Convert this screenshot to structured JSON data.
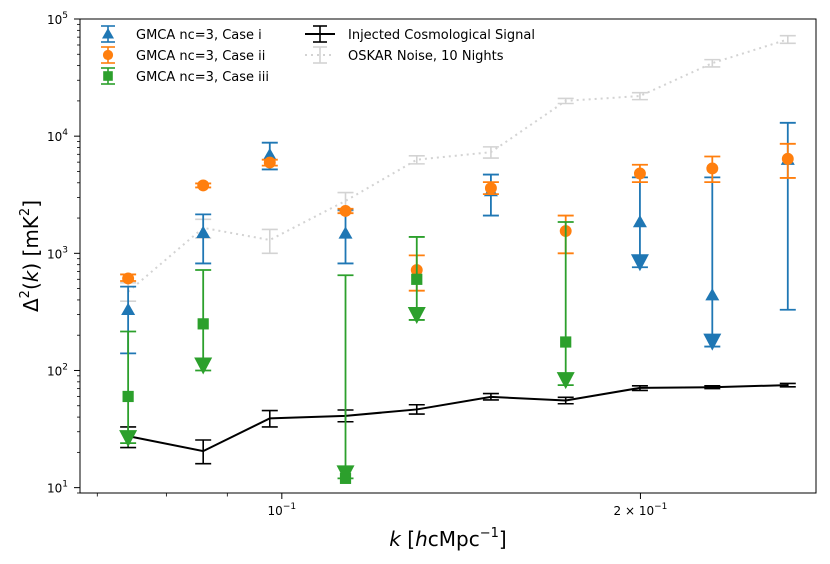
{
  "chart_data": {
    "type": "errorbar",
    "xscale": "log",
    "yscale": "log",
    "xlim": [
      0.0677,
      0.2808
    ],
    "ylim": [
      9,
      100000
    ],
    "x_tick_labels": [
      "10",
      "2 × 10"
    ],
    "x_tick_exponents": [
      "−1",
      "−1"
    ],
    "y_tick_labels": [
      "10",
      "10",
      "10",
      "10",
      "10"
    ],
    "y_tick_exponents": [
      "1",
      "2",
      "3",
      "4",
      "5"
    ],
    "xlabel": {
      "prefix": "k [h",
      "mid": "cMpc",
      "exp": "−1",
      "suffix": "]"
    },
    "ylabel": {
      "prefix": "Δ",
      "exp1": "2",
      "mid": "(k) [mK",
      "exp2": "2",
      "suffix": "]"
    },
    "series": [
      {
        "name": "GMCA nc=3, Case i",
        "color": "#1f77b4",
        "marker": "triangle",
        "points": [
          {
            "x": 0.0743,
            "y": 330,
            "lo": 140,
            "hi": 520
          },
          {
            "x": 0.0859,
            "y": 1500,
            "lo": 820,
            "hi": 2150
          },
          {
            "x": 0.0977,
            "y": 6900,
            "lo": 5200,
            "hi": 8800
          },
          {
            "x": 0.1131,
            "y": 1480,
            "lo": 820,
            "hi": 2350
          },
          {
            "x": 0.1498,
            "y": 3400,
            "lo": 2100,
            "hi": 4700
          },
          {
            "x": 0.1998,
            "y": 1850,
            "lo": 760,
            "hi": 4450,
            "upper_limit": true
          },
          {
            "x": 0.2298,
            "y": 440,
            "lo": 160,
            "hi": 4450,
            "upper_limit": true
          },
          {
            "x": 0.2659,
            "y": 6300,
            "lo": 330,
            "hi": 13000
          }
        ]
      },
      {
        "name": "GMCA nc=3, Case ii",
        "color": "#ff7f0e",
        "marker": "circle",
        "points": [
          {
            "x": 0.0743,
            "y": 610,
            "lo": 580,
            "hi": 660
          },
          {
            "x": 0.0859,
            "y": 3800,
            "lo": 3650,
            "hi": 3950
          },
          {
            "x": 0.0977,
            "y": 5950,
            "lo": 5600,
            "hi": 6300
          },
          {
            "x": 0.1131,
            "y": 2300,
            "lo": 2200,
            "hi": 2400
          },
          {
            "x": 0.1298,
            "y": 720,
            "lo": 480,
            "hi": 960
          },
          {
            "x": 0.1498,
            "y": 3600,
            "lo": 3200,
            "hi": 4050
          },
          {
            "x": 0.1731,
            "y": 1550,
            "lo": 1000,
            "hi": 2100
          },
          {
            "x": 0.1998,
            "y": 4800,
            "lo": 4050,
            "hi": 5700
          },
          {
            "x": 0.2298,
            "y": 5300,
            "lo": 4050,
            "hi": 6700
          },
          {
            "x": 0.2659,
            "y": 6400,
            "lo": 4400,
            "hi": 8600
          }
        ]
      },
      {
        "name": "GMCA nc=3, Case iii",
        "color": "#2ca02c",
        "marker": "square",
        "points": [
          {
            "x": 0.0743,
            "y": 60,
            "lo": 24,
            "hi": 215,
            "upper_limit": true
          },
          {
            "x": 0.0859,
            "y": 250,
            "lo": 100,
            "hi": 720,
            "upper_limit": true
          },
          {
            "x": 0.1131,
            "y": 12,
            "lo": 12,
            "hi": 650,
            "upper_limit": true
          },
          {
            "x": 0.1298,
            "y": 600,
            "lo": 270,
            "hi": 1380,
            "upper_limit": true
          },
          {
            "x": 0.1731,
            "y": 175,
            "lo": 75,
            "hi": 1850,
            "upper_limit": true
          }
        ]
      },
      {
        "name": "Injected Cosmological Signal",
        "color": "#000000",
        "marker": "none",
        "line": "solid",
        "points": [
          {
            "x": 0.0743,
            "y": 27.5,
            "lo": 22,
            "hi": 33
          },
          {
            "x": 0.0859,
            "y": 20.5,
            "lo": 16,
            "hi": 25.5
          },
          {
            "x": 0.0977,
            "y": 39,
            "lo": 33,
            "hi": 45.5
          },
          {
            "x": 0.1131,
            "y": 41,
            "lo": 36.5,
            "hi": 46
          },
          {
            "x": 0.1298,
            "y": 46.5,
            "lo": 42.5,
            "hi": 51
          },
          {
            "x": 0.1498,
            "y": 59.5,
            "lo": 56,
            "hi": 63.5
          },
          {
            "x": 0.1731,
            "y": 55.5,
            "lo": 52,
            "hi": 59
          },
          {
            "x": 0.1998,
            "y": 71,
            "lo": 67.5,
            "hi": 74
          },
          {
            "x": 0.2298,
            "y": 72,
            "lo": 70,
            "hi": 74
          },
          {
            "x": 0.2659,
            "y": 75,
            "lo": 72.5,
            "hi": 77.5
          }
        ]
      },
      {
        "name": "OSKAR Noise, 10 Nights",
        "color": "#d3d3d3",
        "marker": "none",
        "line": "dotted",
        "points": [
          {
            "x": 0.0743,
            "y": 470,
            "lo": 390,
            "hi": 560
          },
          {
            "x": 0.0859,
            "y": 1650,
            "lo": 1350,
            "hi": 1950
          },
          {
            "x": 0.0977,
            "y": 1300,
            "lo": 1000,
            "hi": 1600
          },
          {
            "x": 0.1131,
            "y": 2800,
            "lo": 2300,
            "hi": 3300
          },
          {
            "x": 0.1298,
            "y": 6300,
            "lo": 5800,
            "hi": 6800
          },
          {
            "x": 0.1498,
            "y": 7300,
            "lo": 6500,
            "hi": 8100
          },
          {
            "x": 0.1731,
            "y": 20000,
            "lo": 19000,
            "hi": 21000
          },
          {
            "x": 0.1998,
            "y": 22000,
            "lo": 20500,
            "hi": 23500
          },
          {
            "x": 0.2298,
            "y": 42000,
            "lo": 39000,
            "hi": 45000
          },
          {
            "x": 0.2659,
            "y": 67000,
            "lo": 62000,
            "hi": 72000
          }
        ]
      }
    ],
    "legend": {
      "placement": "top-left",
      "columns": 2,
      "entries": [
        "GMCA nc=3, Case i",
        "GMCA nc=3, Case ii",
        "GMCA nc=3, Case iii",
        "Injected Cosmological Signal",
        "OSKAR Noise, 10 Nights"
      ]
    }
  }
}
